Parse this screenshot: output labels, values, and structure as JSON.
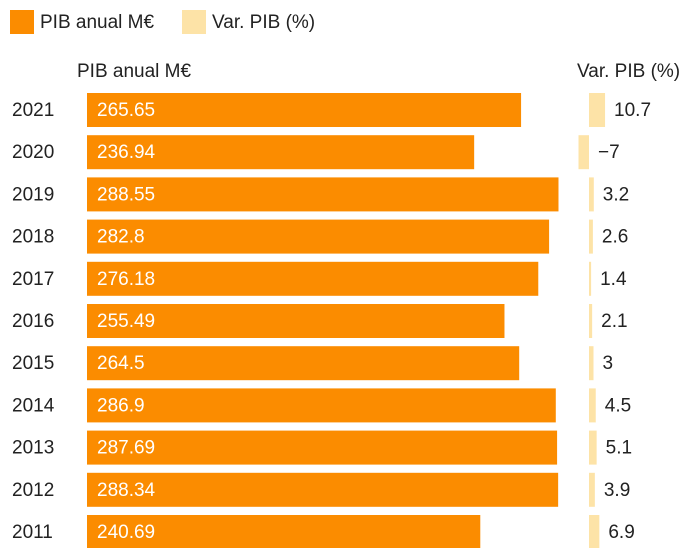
{
  "chart_data": {
    "type": "bar",
    "orientation": "horizontal",
    "categories": [
      "2021",
      "2020",
      "2019",
      "2018",
      "2017",
      "2016",
      "2015",
      "2014",
      "2013",
      "2012",
      "2011"
    ],
    "series": [
      {
        "name": "PIB anual M€",
        "color": "#fb8c00",
        "values": [
          265.65,
          236.94,
          288.55,
          282.8,
          276.18,
          255.49,
          264.5,
          286.9,
          287.69,
          288.34,
          240.69
        ]
      },
      {
        "name": "Var. PIB (%)",
        "color": "#fde3a7",
        "values": [
          10.7,
          -7,
          3.2,
          2.6,
          1.4,
          2.1,
          3,
          4.5,
          5.1,
          3.9,
          6.9
        ],
        "value_labels": [
          "10.7",
          "−7",
          "3.2",
          "2.6",
          "1.4",
          "2.1",
          "3",
          "4.5",
          "5.1",
          "3.9",
          "6.9"
        ]
      }
    ]
  }
}
